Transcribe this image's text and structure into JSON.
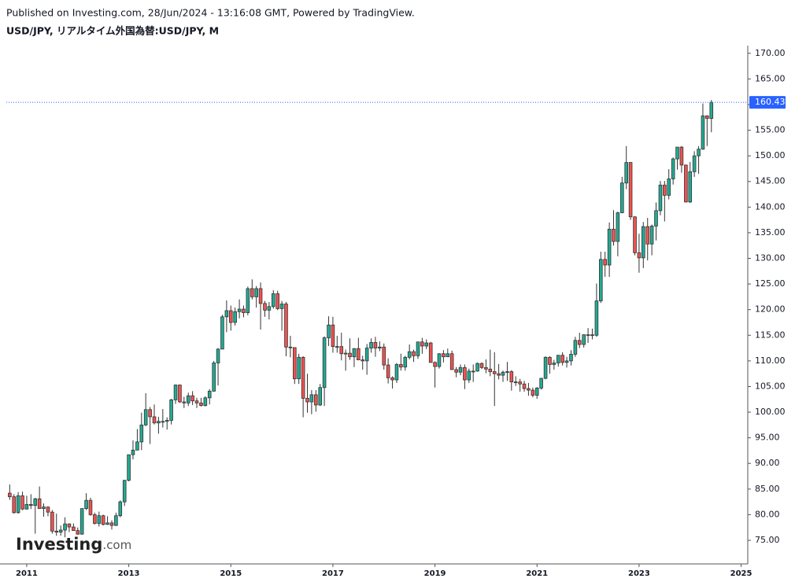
{
  "header": {
    "published": "Published on Investing.com, 28/Jun/2024 - 13:16:08 GMT, Powered by TradingView.",
    "symbol": "USD/JPY, リアルタイム外国為替:USD/JPY, M"
  },
  "watermark": [
    "Investing",
    ".com"
  ],
  "chart_data": {
    "type": "candlestick",
    "up_color": "#22ab94",
    "down_color": "#f05350",
    "last_price": 160.43,
    "last_price_color": "#2962ff",
    "xlim": [
      2010.6,
      2025.13
    ],
    "xticks": [
      2011,
      2013,
      2015,
      2017,
      2019,
      2021,
      2023,
      2025
    ],
    "ylim": [
      70.4,
      171.5
    ],
    "yticks": [
      {
        "value": 75,
        "label": "75.00"
      },
      {
        "value": 80,
        "label": "80.00"
      },
      {
        "value": 85,
        "label": "85.00"
      },
      {
        "value": 90,
        "label": "90.00"
      },
      {
        "value": 95,
        "label": "95.00"
      },
      {
        "value": 100,
        "label": "100.00"
      },
      {
        "value": 105,
        "label": "105.00"
      },
      {
        "value": 110,
        "label": "110.00"
      },
      {
        "value": 115,
        "label": "115.00"
      },
      {
        "value": 120,
        "label": "120.00"
      },
      {
        "value": 125,
        "label": "125.00"
      },
      {
        "value": 130,
        "label": "130.00"
      },
      {
        "value": 135,
        "label": "135.00"
      },
      {
        "value": 140,
        "label": "140.00"
      },
      {
        "value": 145,
        "label": "145.00"
      },
      {
        "value": 150,
        "label": "150.00"
      },
      {
        "value": 155,
        "label": "155.00"
      },
      {
        "value": 160,
        "label": "160.00"
      },
      {
        "value": 165,
        "label": "165.00"
      },
      {
        "value": 170,
        "label": "170.00"
      }
    ],
    "x": [
      2010.667,
      2010.75,
      2010.833,
      2010.917,
      2011,
      2011.083,
      2011.167,
      2011.25,
      2011.333,
      2011.417,
      2011.5,
      2011.583,
      2011.667,
      2011.75,
      2011.833,
      2011.917,
      2012,
      2012.083,
      2012.167,
      2012.25,
      2012.333,
      2012.417,
      2012.5,
      2012.583,
      2012.667,
      2012.75,
      2012.833,
      2012.917,
      2013,
      2013.083,
      2013.167,
      2013.25,
      2013.333,
      2013.417,
      2013.5,
      2013.583,
      2013.667,
      2013.75,
      2013.833,
      2013.917,
      2014,
      2014.083,
      2014.167,
      2014.25,
      2014.333,
      2014.417,
      2014.5,
      2014.583,
      2014.667,
      2014.75,
      2014.833,
      2014.917,
      2015,
      2015.083,
      2015.167,
      2015.25,
      2015.333,
      2015.417,
      2015.5,
      2015.583,
      2015.667,
      2015.75,
      2015.833,
      2015.917,
      2016,
      2016.083,
      2016.167,
      2016.25,
      2016.333,
      2016.417,
      2016.5,
      2016.583,
      2016.667,
      2016.75,
      2016.833,
      2016.917,
      2017,
      2017.083,
      2017.167,
      2017.25,
      2017.333,
      2017.417,
      2017.5,
      2017.583,
      2017.667,
      2017.75,
      2017.833,
      2017.917,
      2018,
      2018.083,
      2018.167,
      2018.25,
      2018.333,
      2018.417,
      2018.5,
      2018.583,
      2018.667,
      2018.75,
      2018.833,
      2018.917,
      2019,
      2019.083,
      2019.167,
      2019.25,
      2019.333,
      2019.417,
      2019.5,
      2019.583,
      2019.667,
      2019.75,
      2019.833,
      2019.917,
      2020,
      2020.083,
      2020.167,
      2020.25,
      2020.333,
      2020.417,
      2020.5,
      2020.583,
      2020.667,
      2020.75,
      2020.833,
      2020.917,
      2021,
      2021.083,
      2021.167,
      2021.25,
      2021.333,
      2021.417,
      2021.5,
      2021.583,
      2021.667,
      2021.75,
      2021.833,
      2021.917,
      2022,
      2022.083,
      2022.167,
      2022.25,
      2022.333,
      2022.417,
      2022.5,
      2022.583,
      2022.667,
      2022.75,
      2022.833,
      2022.917,
      2023,
      2023.083,
      2023.167,
      2023.25,
      2023.333,
      2023.417,
      2023.5,
      2023.583,
      2023.667,
      2023.75,
      2023.833,
      2023.917,
      2024,
      2024.083,
      2024.167,
      2024.25,
      2024.333,
      2024.417
    ],
    "open": [
      84.2,
      83.5,
      80.4,
      83.7,
      81.1,
      82.0,
      81.8,
      83.1,
      81.2,
      81.5,
      80.5,
      76.8,
      76.6,
      77.0,
      78.2,
      77.6,
      76.9,
      76.2,
      81.2,
      82.8,
      80.0,
      78.3,
      79.8,
      78.1,
      78.4,
      77.9,
      79.8,
      82.5,
      86.7,
      91.7,
      92.6,
      94.2,
      97.5,
      100.5,
      99.1,
      97.9,
      98.2,
      98.2,
      98.4,
      102.4,
      105.3,
      102.0,
      101.8,
      103.2,
      102.2,
      101.8,
      101.3,
      102.8,
      104.1,
      109.6,
      112.3,
      118.6,
      119.8,
      117.5,
      119.6,
      120.1,
      119.4,
      124.1,
      122.5,
      124.1,
      121.2,
      119.9,
      120.6,
      123.1,
      120.2,
      121.1,
      112.7,
      112.6,
      106.5,
      110.7,
      102.7,
      102.0,
      103.4,
      101.4,
      104.8,
      114.5,
      117.0,
      112.8,
      112.8,
      111.4,
      111.5,
      110.8,
      112.4,
      110.2,
      110.0,
      112.5,
      113.6,
      112.5,
      112.7,
      109.2,
      106.7,
      106.3,
      109.3,
      108.8,
      110.7,
      111.8,
      111.0,
      113.7,
      112.9,
      113.5,
      109.7,
      108.9,
      111.4,
      110.8,
      111.4,
      108.3,
      107.8,
      108.7,
      106.3,
      108.0,
      108.0,
      109.5,
      108.7,
      108.4,
      107.9,
      107.5,
      107.2,
      107.8,
      107.9,
      105.9,
      105.9,
      105.5,
      104.6,
      104.3,
      103.3,
      104.7,
      106.6,
      110.7,
      109.3,
      109.6,
      111.1,
      109.7,
      110.0,
      111.3,
      114.0,
      113.2,
      115.1,
      115.1,
      115.0,
      121.7,
      129.8,
      128.7,
      135.7,
      133.3,
      138.9,
      144.7,
      148.7,
      138.1,
      131.1,
      130.1,
      136.2,
      132.8,
      136.3,
      139.3,
      144.3,
      142.3,
      145.5,
      149.4,
      151.7,
      148.2,
      141.0,
      146.9,
      150.0,
      151.3,
      157.8,
      157.3
    ],
    "high": [
      85.9,
      84.0,
      84.4,
      84.5,
      83.7,
      84.0,
      83.3,
      85.5,
      82.2,
      81.6,
      80.9,
      80.2,
      77.9,
      79.5,
      78.3,
      78.3,
      77.5,
      81.2,
      84.2,
      83.3,
      80.4,
      80.6,
      80.0,
      79.7,
      78.9,
      80.4,
      82.8,
      86.8,
      91.7,
      94.5,
      96.7,
      99.9,
      103.7,
      101.0,
      101.5,
      99.1,
      100.6,
      99.0,
      102.6,
      105.4,
      105.4,
      103.0,
      103.8,
      104.1,
      102.8,
      102.8,
      103.1,
      104.5,
      110.0,
      112.5,
      119.0,
      121.8,
      120.8,
      120.4,
      122.0,
      120.8,
      124.5,
      125.9,
      124.6,
      125.3,
      121.7,
      121.5,
      123.8,
      123.7,
      121.7,
      121.5,
      114.9,
      112.6,
      111.4,
      110.9,
      107.5,
      104.3,
      104.3,
      105.5,
      114.8,
      118.7,
      118.6,
      114.9,
      115.5,
      112.2,
      114.4,
      112.5,
      114.5,
      111.0,
      113.3,
      114.4,
      114.7,
      113.8,
      113.4,
      110.5,
      107.0,
      109.6,
      111.4,
      111.0,
      113.2,
      112.2,
      113.7,
      114.5,
      114.2,
      113.7,
      109.9,
      111.5,
      112.1,
      112.4,
      112.0,
      108.8,
      109.3,
      109.3,
      108.5,
      109.3,
      109.7,
      109.7,
      110.3,
      112.2,
      111.7,
      109.4,
      108.1,
      109.8,
      108.2,
      107.0,
      106.5,
      106.1,
      105.7,
      104.8,
      104.9,
      106.7,
      110.9,
      110.9,
      110.2,
      111.1,
      111.7,
      110.8,
      112.1,
      114.7,
      115.5,
      115.2,
      116.4,
      116.3,
      125.1,
      131.3,
      131.3,
      137.0,
      139.4,
      139.1,
      145.9,
      151.9,
      148.8,
      138.2,
      134.8,
      137.1,
      137.9,
      136.6,
      140.9,
      145.1,
      145.1,
      147.4,
      149.7,
      151.7,
      151.9,
      148.3,
      148.8,
      150.9,
      151.9,
      160.2,
      157.9,
      160.9
    ],
    "low": [
      82.9,
      80.2,
      80.2,
      80.9,
      81.0,
      81.1,
      76.3,
      81.3,
      79.6,
      79.7,
      76.3,
      75.9,
      75.9,
      75.6,
      76.6,
      76.9,
      76.1,
      76.1,
      80.9,
      79.8,
      78.1,
      77.7,
      77.9,
      78.0,
      77.1,
      77.8,
      79.5,
      81.7,
      86.5,
      90.8,
      92.6,
      92.6,
      97.3,
      93.8,
      97.6,
      95.8,
      97.0,
      96.6,
      97.6,
      101.6,
      101.8,
      100.8,
      101.2,
      101.4,
      100.8,
      101.1,
      101.1,
      101.5,
      104.0,
      105.2,
      112.3,
      115.6,
      115.9,
      116.9,
      118.3,
      118.5,
      118.9,
      122.0,
      120.4,
      116.1,
      118.6,
      118.1,
      120.2,
      119.9,
      115.9,
      110.9,
      110.7,
      105.5,
      105.5,
      99.0,
      99.9,
      99.6,
      100.1,
      101.2,
      101.2,
      112.9,
      111.6,
      111.6,
      110.1,
      108.1,
      110.2,
      108.8,
      110.6,
      108.3,
      107.3,
      111.6,
      110.8,
      111.9,
      108.3,
      105.6,
      104.6,
      105.7,
      108.1,
      108.1,
      110.3,
      109.8,
      110.4,
      111.4,
      112.3,
      109.8,
      104.8,
      108.5,
      109.7,
      110.8,
      108.3,
      106.8,
      107.2,
      104.5,
      105.7,
      105.9,
      107.9,
      108.4,
      107.6,
      107.0,
      101.2,
      106.4,
      105.9,
      106.1,
      104.2,
      105.1,
      104.0,
      104.0,
      103.2,
      102.9,
      102.6,
      104.4,
      106.4,
      107.5,
      108.3,
      108.9,
      109.1,
      108.7,
      109.1,
      110.8,
      112.5,
      112.6,
      113.5,
      114.2,
      114.7,
      121.3,
      126.4,
      126.4,
      132.5,
      130.4,
      138.8,
      143.5,
      137.5,
      130.6,
      127.2,
      128.1,
      129.6,
      130.6,
      133.5,
      138.4,
      137.2,
      141.5,
      144.4,
      147.3,
      146.7,
      140.9,
      140.8,
      145.9,
      146.5,
      151.2,
      151.9,
      154.6
    ],
    "close": [
      83.5,
      80.4,
      83.7,
      81.1,
      82.0,
      81.8,
      83.1,
      81.2,
      81.5,
      80.5,
      76.8,
      76.6,
      77.0,
      78.2,
      77.6,
      76.9,
      76.2,
      81.2,
      82.8,
      80.0,
      78.3,
      79.8,
      78.1,
      78.4,
      77.9,
      79.8,
      82.5,
      86.7,
      91.7,
      92.6,
      94.2,
      97.5,
      100.5,
      99.1,
      97.9,
      98.2,
      98.2,
      98.4,
      102.4,
      105.3,
      102.0,
      101.8,
      103.2,
      102.2,
      101.8,
      101.3,
      102.8,
      104.1,
      109.6,
      112.3,
      118.6,
      119.8,
      117.5,
      119.6,
      120.1,
      119.4,
      124.1,
      122.5,
      124.1,
      121.2,
      119.9,
      120.6,
      123.1,
      120.2,
      121.1,
      112.7,
      112.6,
      106.5,
      110.7,
      102.7,
      102.0,
      103.4,
      101.4,
      104.8,
      114.5,
      117.0,
      112.8,
      112.8,
      111.4,
      111.5,
      110.8,
      112.4,
      110.2,
      110.0,
      112.5,
      113.6,
      112.5,
      112.7,
      109.2,
      106.7,
      106.3,
      109.3,
      108.8,
      110.7,
      111.8,
      111.0,
      113.7,
      112.9,
      113.5,
      109.7,
      108.9,
      111.4,
      110.8,
      111.4,
      108.3,
      107.8,
      108.7,
      106.3,
      108.0,
      108.0,
      109.5,
      108.7,
      108.4,
      107.9,
      107.5,
      107.2,
      107.8,
      107.9,
      105.9,
      105.9,
      105.5,
      104.6,
      104.3,
      103.3,
      104.7,
      106.6,
      110.7,
      109.3,
      109.6,
      111.1,
      109.7,
      110.0,
      111.3,
      114.0,
      113.2,
      115.1,
      115.1,
      115.0,
      121.7,
      129.8,
      128.7,
      135.7,
      133.3,
      138.9,
      144.7,
      148.7,
      138.1,
      131.1,
      130.1,
      136.2,
      132.8,
      136.3,
      139.3,
      144.3,
      142.3,
      145.5,
      149.4,
      151.7,
      148.2,
      141.0,
      146.9,
      150.0,
      151.3,
      157.8,
      157.3,
      160.43
    ]
  }
}
